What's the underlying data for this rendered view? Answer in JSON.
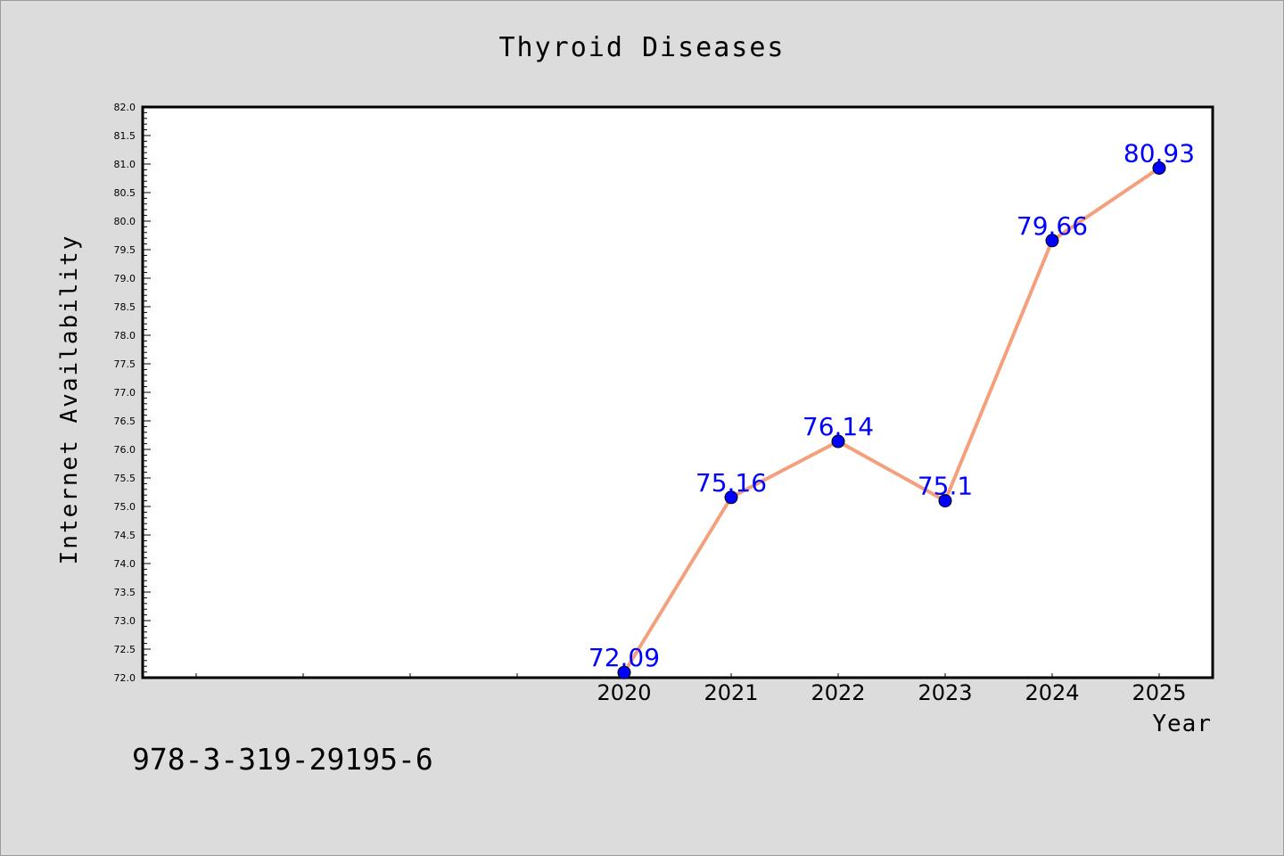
{
  "chart_data": {
    "type": "line",
    "title": "Thyroid Diseases",
    "xlabel": "Year",
    "ylabel": "Internet Availability",
    "x": [
      "2020",
      "2021",
      "2022",
      "2023",
      "2024",
      "2025"
    ],
    "series": [
      {
        "values": [
          72.09,
          75.16,
          76.14,
          75.1,
          79.66,
          80.93
        ],
        "data_labels": [
          "72.09",
          "75.16",
          "76.14",
          "75.1",
          "79.66",
          "80.93"
        ],
        "line_color": "#f4a07c",
        "marker_color": "#0000ff",
        "label_color": "#0000ff"
      }
    ],
    "ylim": [
      72.0,
      82.0
    ],
    "yticks": [
      "72.0",
      "72.5",
      "73.0",
      "73.5",
      "74.0",
      "74.5",
      "75.0",
      "75.5",
      "76.0",
      "76.5",
      "77.0",
      "77.5",
      "78.0",
      "78.5",
      "79.0",
      "79.5",
      "80.0",
      "80.5",
      "81.0",
      "81.5",
      "82.0"
    ],
    "xlim": [
      2015.5,
      2025.5
    ],
    "grid": false,
    "legend": "none"
  },
  "footer": {
    "isbn": "978-3-319-29195-6"
  },
  "colors": {
    "background": "#dcdcdc",
    "plot_area": "#ffffff",
    "axis": "#000000"
  }
}
